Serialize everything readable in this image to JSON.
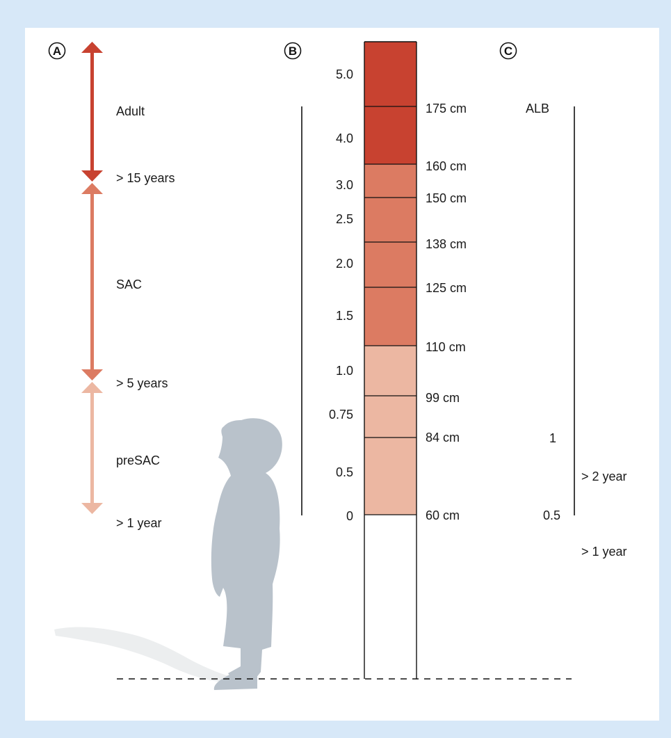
{
  "colors": {
    "background": "#d7e8f8",
    "panel": "#ffffff",
    "adult": "#c84230",
    "sac": "#dc7b62",
    "presac": "#ecb7a2",
    "silhouette": "#b9c2cb",
    "shadow": "#eceeef",
    "text": "#1a1a1a"
  },
  "panels": {
    "a": "A",
    "b": "B",
    "c": "C"
  },
  "age_groups": [
    {
      "label": "Adult",
      "lower_bound": "> 15 years"
    },
    {
      "label": "SAC",
      "lower_bound": "> 5 years"
    },
    {
      "label": "preSAC",
      "lower_bound": "> 1 year"
    }
  ],
  "dose_pole": {
    "heights_cm": [
      175,
      160,
      150,
      138,
      125,
      110,
      99,
      84,
      60
    ],
    "height_labels": [
      "175 cm",
      "160 cm",
      "150 cm",
      "138 cm",
      "125 cm",
      "110 cm",
      "99 cm",
      "84 cm",
      "60 cm"
    ],
    "dose_labels": [
      "5.0",
      "4.0",
      "3.0",
      "2.5",
      "2.0",
      "1.5",
      "1.0",
      "0.75",
      "0.5",
      "0"
    ]
  },
  "albendazole": {
    "title": "ALB",
    "doses": [
      {
        "label": "1",
        "age": "> 2 year"
      },
      {
        "label": "0.5",
        "age": "> 1 year"
      }
    ]
  }
}
